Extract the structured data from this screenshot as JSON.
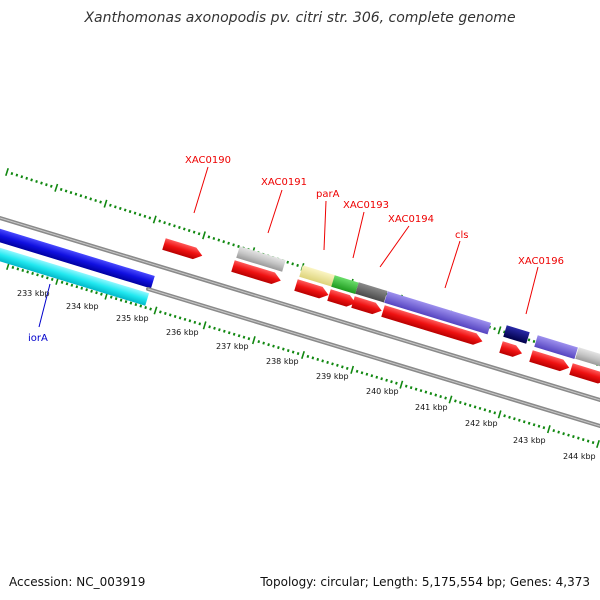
{
  "title": "Xanthomonas axonopodis pv. citri str. 306, complete genome",
  "footer": {
    "accession": "Accession: NC_003919",
    "topology": "Topology: circular; Length: 5,175,554 bp; Genes: 4,373"
  },
  "ruler": {
    "unit": "kbp",
    "ticks": [
      "233 kbp",
      "234 kbp",
      "235 kbp",
      "236 kbp",
      "237 kbp",
      "238 kbp",
      "239 kbp",
      "240 kbp",
      "241 kbp",
      "242 kbp",
      "243 kbp",
      "244 kbp"
    ]
  },
  "gene_labels": [
    {
      "id": "XAC0190",
      "text": "XAC0190",
      "color": "#ee0000"
    },
    {
      "id": "XAC0191",
      "text": "XAC0191",
      "color": "#ee0000"
    },
    {
      "id": "parA",
      "text": "parA",
      "color": "#ee0000"
    },
    {
      "id": "XAC0193",
      "text": "XAC0193",
      "color": "#ee0000"
    },
    {
      "id": "XAC0194",
      "text": "XAC0194",
      "color": "#ee0000"
    },
    {
      "id": "cls",
      "text": "cls",
      "color": "#ee0000"
    },
    {
      "id": "XAC0196",
      "text": "XAC0196",
      "color": "#ee0000"
    },
    {
      "id": "iorA",
      "text": "iorA",
      "color": "#0000cc"
    }
  ],
  "colors": {
    "gene_red": "#ee1111",
    "protein_blue": "#1010e0",
    "protein_cyan": "#22e8f0",
    "backbone_gray": "#8a8a8a",
    "tick_green": "#118811",
    "light_gray": "#c4c4c4",
    "khaki": "#eee59a",
    "green": "#33bb33",
    "dark_gray": "#666666",
    "lavender": "#7766dd",
    "navy": "#0a0a7a"
  }
}
